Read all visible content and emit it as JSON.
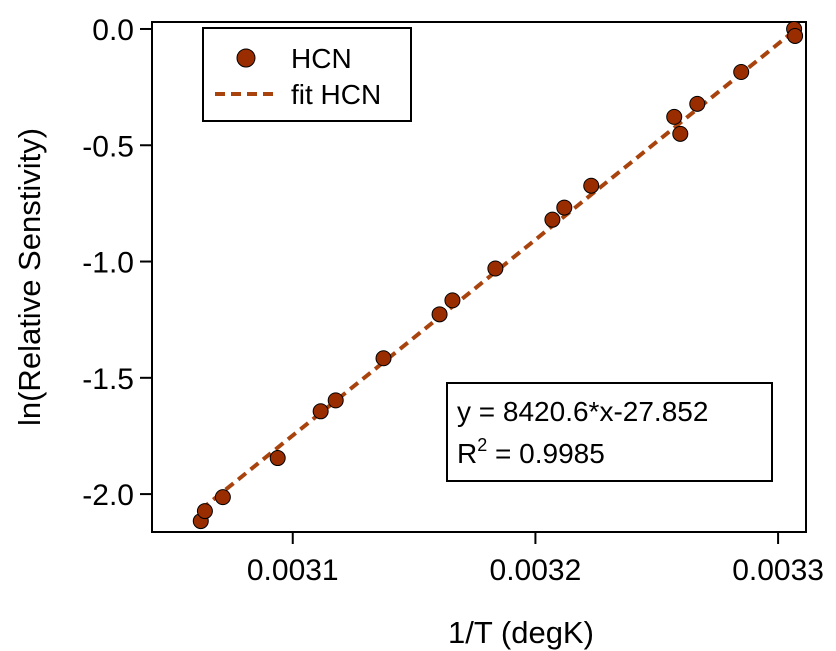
{
  "chart_data": {
    "type": "scatter",
    "x_label": "1/T (degK)",
    "y_label": "ln(Relative Senstivity)",
    "xlim": [
      0.003042,
      0.0033115
    ],
    "ylim": [
      -2.163,
      0.03
    ],
    "xticks": [
      0.0031,
      0.0032,
      0.0033
    ],
    "yticks": [
      {
        "value": 0,
        "label": "0.0"
      },
      -0.5,
      {
        "value": -1,
        "label": "-1.0"
      },
      -1.5,
      {
        "value": -2,
        "label": "-2.0"
      }
    ],
    "legend": "top-left",
    "series": [
      {
        "name": "HCN",
        "color": "#9a2d00",
        "style": "markers",
        "x": [
          0.0030621,
          0.0030638,
          0.0030712,
          0.0030938,
          0.0031115,
          0.0031177,
          0.0031374,
          0.0031605,
          0.0031658,
          0.0031835,
          0.003207,
          0.0032119,
          0.003223,
          0.0032572,
          0.0032597,
          0.0032667,
          0.0032848,
          0.0033066,
          0.003307
        ],
        "values": [
          -2.116,
          -2.073,
          -2.013,
          -1.845,
          -1.644,
          -1.597,
          -1.416,
          -1.227,
          -1.167,
          -1.03,
          -0.82,
          -0.768,
          -0.674,
          -0.378,
          -0.451,
          -0.322,
          -0.185,
          0.0,
          -0.03
        ]
      },
      {
        "name": "fit HCN",
        "color": "#a8430e",
        "style": "dashed-line",
        "x": [
          0.0030621,
          0.003307
        ],
        "values": [
          -2.067,
          -0.005
        ]
      }
    ],
    "annotation": {
      "equation": "y = 8420.6*x-27.852",
      "r2_symbol": "R",
      "r2_power": "2",
      "r2_value": " = 0.9985"
    }
  }
}
